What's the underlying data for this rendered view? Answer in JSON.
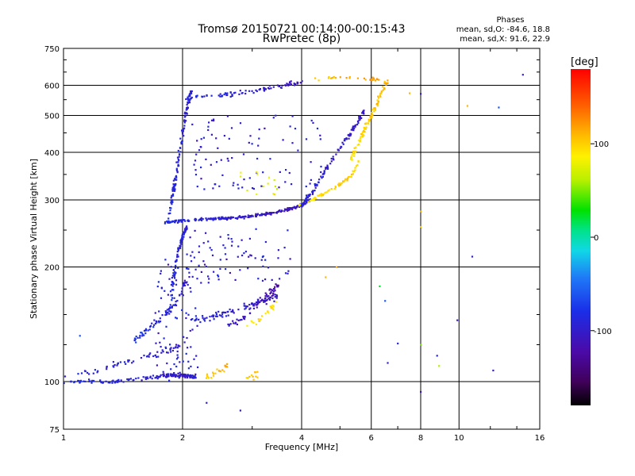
{
  "chart_data": {
    "type": "scatter",
    "title": "Tromsø 20150721 00:14:00-00:15:43",
    "subtitle": "RwPretec (8p)",
    "xlabel": "Frequency [MHz]",
    "ylabel": "Stationary phase Virtual Height [km]",
    "x_scale": "log2",
    "y_scale": "log",
    "xlim": [
      1,
      16
    ],
    "ylim": [
      75,
      750
    ],
    "x_ticks": [
      1,
      2,
      4,
      6,
      8,
      10,
      16
    ],
    "x_tick_labels": [
      "1",
      "2",
      "4",
      "6",
      "8",
      "10",
      "16"
    ],
    "y_ticks": [
      75,
      100,
      200,
      300,
      400,
      500,
      600,
      750
    ],
    "y_tick_labels": [
      "75",
      "100",
      "200",
      "300",
      "400",
      "500",
      "600",
      "750"
    ],
    "grid": true,
    "stats": {
      "heading": "Phases",
      "line_o": "mean, sd,O: -84.6, 18.8",
      "line_x": "mean, sd,X:  91.6, 22.9"
    },
    "colorbar": {
      "label": "[deg]",
      "range": [
        -180,
        180
      ],
      "ticks": [
        100,
        0,
        -100
      ],
      "tick_labels": [
        "100",
        "0",
        "-100"
      ],
      "colormap": "rainbow"
    },
    "series": [
      {
        "traces": [
          {
            "kind": "line",
            "x": [
              1.0,
              1.3,
              1.6,
              1.8,
              2.0,
              2.15
            ],
            "y": [
              100,
              100,
              102,
              104,
              104,
              103
            ],
            "spread": 0.018,
            "phase": [
              -85,
              -90,
              -95,
              -100,
              -105,
              -95
            ],
            "n": 160
          },
          {
            "kind": "line",
            "x": [
              1.0,
              1.25,
              1.5,
              1.8,
              2.0
            ],
            "y": [
              103,
              108,
              114,
              120,
              124
            ],
            "spread": 0.03,
            "phase": [
              -85,
              -95,
              -95,
              -100,
              -100
            ],
            "n": 60
          },
          {
            "kind": "line",
            "x": [
              1.5,
              1.65,
              1.8,
              1.95,
              2.05
            ],
            "y": [
              128,
              138,
              150,
              165,
              185
            ],
            "spread": 0.03,
            "phase": [
              -75,
              -85,
              -90,
              -95,
              -100
            ],
            "n": 70
          },
          {
            "kind": "line",
            "x": [
              1.85,
              1.9,
              1.95,
              2.0,
              2.05
            ],
            "y": [
              150,
              190,
              220,
              240,
              255
            ],
            "spread": 0.02,
            "phase": [
              -85,
              -90,
              -90,
              -95,
              -95
            ],
            "n": 100
          },
          {
            "kind": "line",
            "x": [
              1.85,
              1.9,
              1.95,
              2.0,
              2.05,
              2.1
            ],
            "y": [
              270,
              320,
              380,
              450,
              520,
              580
            ],
            "spread": 0.02,
            "phase": [
              -85,
              -90,
              -90,
              -95,
              -95,
              -95
            ],
            "n": 130
          },
          {
            "kind": "line",
            "x": [
              1.8,
              2.0,
              2.4,
              2.8,
              3.2,
              3.6,
              4.0,
              4.2
            ],
            "y": [
              262,
              265,
              268,
              270,
              275,
              282,
              290,
              300
            ],
            "spread": 0.012,
            "phase": [
              -85,
              -90,
              -95,
              -100,
              -105,
              -110,
              -105,
              -90
            ],
            "n": 260
          },
          {
            "kind": "line",
            "x": [
              3.9,
              4.2,
              4.5,
              4.9,
              5.3,
              5.6
            ],
            "y": [
              290,
              300,
              310,
              325,
              345,
              380
            ],
            "spread": 0.015,
            "phase": [
              80,
              90,
              95,
              100,
              100,
              95
            ],
            "n": 70
          },
          {
            "kind": "line",
            "x": [
              4.0,
              4.3,
              4.6,
              5.0,
              5.4,
              5.8
            ],
            "y": [
              290,
              320,
              360,
              410,
              460,
              520
            ],
            "spread": 0.02,
            "phase": [
              -90,
              -95,
              -100,
              -100,
              -105,
              -105
            ],
            "n": 120
          },
          {
            "kind": "line",
            "x": [
              5.3,
              5.6,
              5.9,
              6.2,
              6.6
            ],
            "y": [
              380,
              430,
              480,
              540,
              620
            ],
            "spread": 0.02,
            "phase": [
              90,
              95,
              100,
              105,
              110
            ],
            "n": 100
          },
          {
            "kind": "line",
            "x": [
              2.0,
              2.5,
              3.0,
              3.5,
              4.0
            ],
            "y": [
              555,
              565,
              580,
              595,
              615
            ],
            "spread": 0.02,
            "phase": [
              -85,
              -90,
              -100,
              -105,
              -110
            ],
            "n": 90
          },
          {
            "kind": "line",
            "x": [
              4.3,
              5.0,
              5.8,
              6.4
            ],
            "y": [
              625,
              630,
              625,
              620
            ],
            "spread": 0.015,
            "phase": [
              100,
              110,
              115,
              120
            ],
            "n": 30
          },
          {
            "kind": "line",
            "x": [
              2.1,
              2.5,
              3.0,
              3.5
            ],
            "y": [
              145,
              150,
              160,
              168
            ],
            "spread": 0.03,
            "phase": [
              -90,
              -95,
              -100,
              -110
            ],
            "n": 90
          },
          {
            "kind": "line",
            "x": [
              2.6,
              2.9,
              3.2,
              3.4,
              3.5
            ],
            "y": [
              140,
              150,
              165,
              175,
              180
            ],
            "spread": 0.03,
            "phase": [
              -100,
              -110,
              -115,
              -120,
              -125
            ],
            "n": 60
          },
          {
            "kind": "line",
            "x": [
              2.9,
              3.1,
              3.3,
              3.5
            ],
            "y": [
              140,
              145,
              155,
              160
            ],
            "spread": 0.03,
            "phase": [
              80,
              95,
              100,
              90
            ],
            "n": 22
          },
          {
            "kind": "line",
            "x": [
              2.3,
              2.45,
              2.6
            ],
            "y": [
              102,
              106,
              110
            ],
            "spread": 0.03,
            "phase": [
              95,
              110,
              115
            ],
            "n": 22
          },
          {
            "kind": "line",
            "x": [
              2.9,
              3.1
            ],
            "y": [
              101,
              105
            ],
            "spread": 0.03,
            "phase": [
              95,
              110
            ],
            "n": 12
          },
          {
            "kind": "box",
            "xlim": [
              2.0,
              3.8
            ],
            "ylim": [
              180,
              255
            ],
            "phase": [
              -115,
              -80
            ],
            "n": 80
          },
          {
            "kind": "box",
            "xlim": [
              2.1,
              4.5
            ],
            "ylim": [
              320,
              500
            ],
            "phase": [
              -115,
              -80
            ],
            "n": 90
          },
          {
            "kind": "box",
            "xlim": [
              2.8,
              3.6
            ],
            "ylim": [
              310,
              370
            ],
            "phase": [
              60,
              100
            ],
            "n": 14
          },
          {
            "kind": "box",
            "xlim": [
              1.7,
              2.2
            ],
            "ylim": [
              100,
              210
            ],
            "phase": [
              -110,
              -80
            ],
            "n": 80
          }
        ]
      },
      {
        "points": [
          [
            1.1,
            132,
            -60
          ],
          [
            2.3,
            88,
            -95
          ],
          [
            2.8,
            84,
            -105
          ],
          [
            4.6,
            188,
            110
          ],
          [
            4.9,
            200,
            115
          ],
          [
            6.3,
            178,
            20
          ],
          [
            6.5,
            163,
            -60
          ],
          [
            6.6,
            112,
            -95
          ],
          [
            7.0,
            126,
            -90
          ],
          [
            8.0,
            280,
            110
          ],
          [
            8.0,
            255,
            100
          ],
          [
            8.0,
            125,
            50
          ],
          [
            8.0,
            94,
            -110
          ],
          [
            8.0,
            570,
            -100
          ],
          [
            8.8,
            117,
            -95
          ],
          [
            8.9,
            110,
            60
          ],
          [
            9.9,
            145,
            -100
          ],
          [
            10.5,
            530,
            110
          ],
          [
            10.8,
            213,
            -95
          ],
          [
            12.2,
            107,
            -100
          ],
          [
            12.6,
            525,
            -60
          ],
          [
            14.5,
            640,
            -100
          ],
          [
            7.5,
            572,
            110
          ]
        ]
      }
    ]
  }
}
